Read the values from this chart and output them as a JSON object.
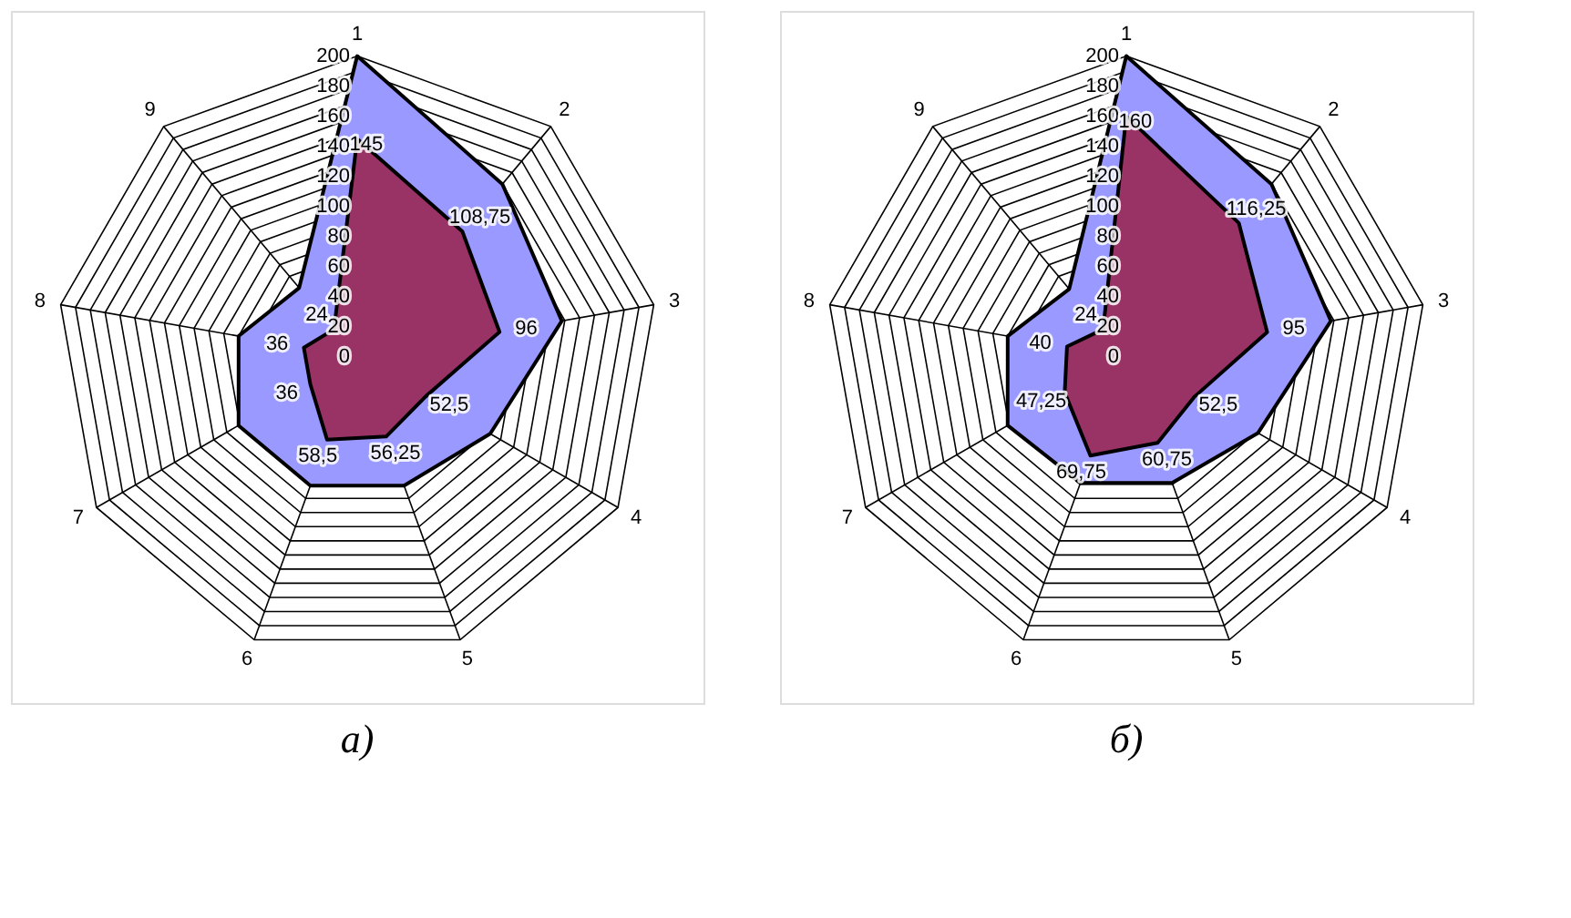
{
  "chart_data": [
    {
      "type": "radar",
      "title": "а)",
      "categories": [
        "1",
        "2",
        "3",
        "4",
        "5",
        "6",
        "7",
        "8",
        "9"
      ],
      "ylim": [
        0,
        200
      ],
      "yticks": [
        0,
        20,
        40,
        60,
        80,
        100,
        120,
        140,
        160,
        180,
        200
      ],
      "grid": true,
      "series": [
        {
          "color": "#9999ff",
          "values": [
            200,
            150,
            138,
            102,
            91,
            91,
            91,
            80,
            60
          ]
        },
        {
          "color": "#993366",
          "values": [
            145,
            108.75,
            96,
            52.5,
            56.25,
            58.5,
            36,
            36,
            24
          ],
          "value_labels": [
            "145",
            "108,75",
            "96",
            "52,5",
            "56,25",
            "58,5",
            "36",
            "36",
            "24"
          ]
        }
      ]
    },
    {
      "type": "radar",
      "title": "б)",
      "categories": [
        "1",
        "2",
        "3",
        "4",
        "5",
        "6",
        "7",
        "8",
        "9"
      ],
      "ylim": [
        0,
        200
      ],
      "yticks": [
        0,
        20,
        40,
        60,
        80,
        100,
        120,
        140,
        160,
        180,
        200
      ],
      "grid": true,
      "series": [
        {
          "color": "#9999ff",
          "values": [
            200,
            150,
            138,
            101,
            89,
            89,
            91,
            80,
            59
          ]
        },
        {
          "color": "#993366",
          "values": [
            160,
            116.25,
            95,
            52.5,
            60.75,
            69.75,
            47.25,
            40,
            24
          ],
          "value_labels": [
            "160",
            "116,25",
            "95",
            "52,5",
            "60,75",
            "69,75",
            "47,25",
            "40",
            "24"
          ]
        }
      ]
    }
  ]
}
